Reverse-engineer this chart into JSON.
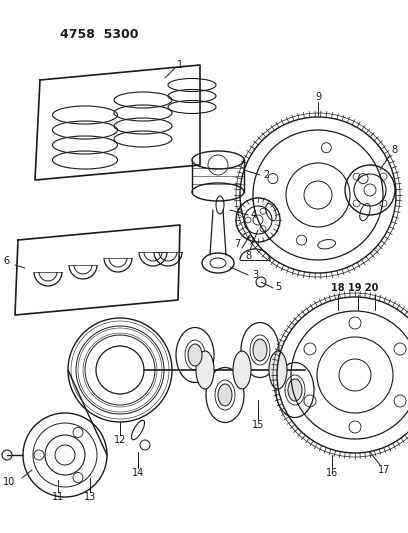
{
  "title": "4758  5300",
  "bg_color": "#ffffff",
  "line_color": "#1a1a1a",
  "figsize": [
    4.08,
    5.33
  ],
  "dpi": 100
}
